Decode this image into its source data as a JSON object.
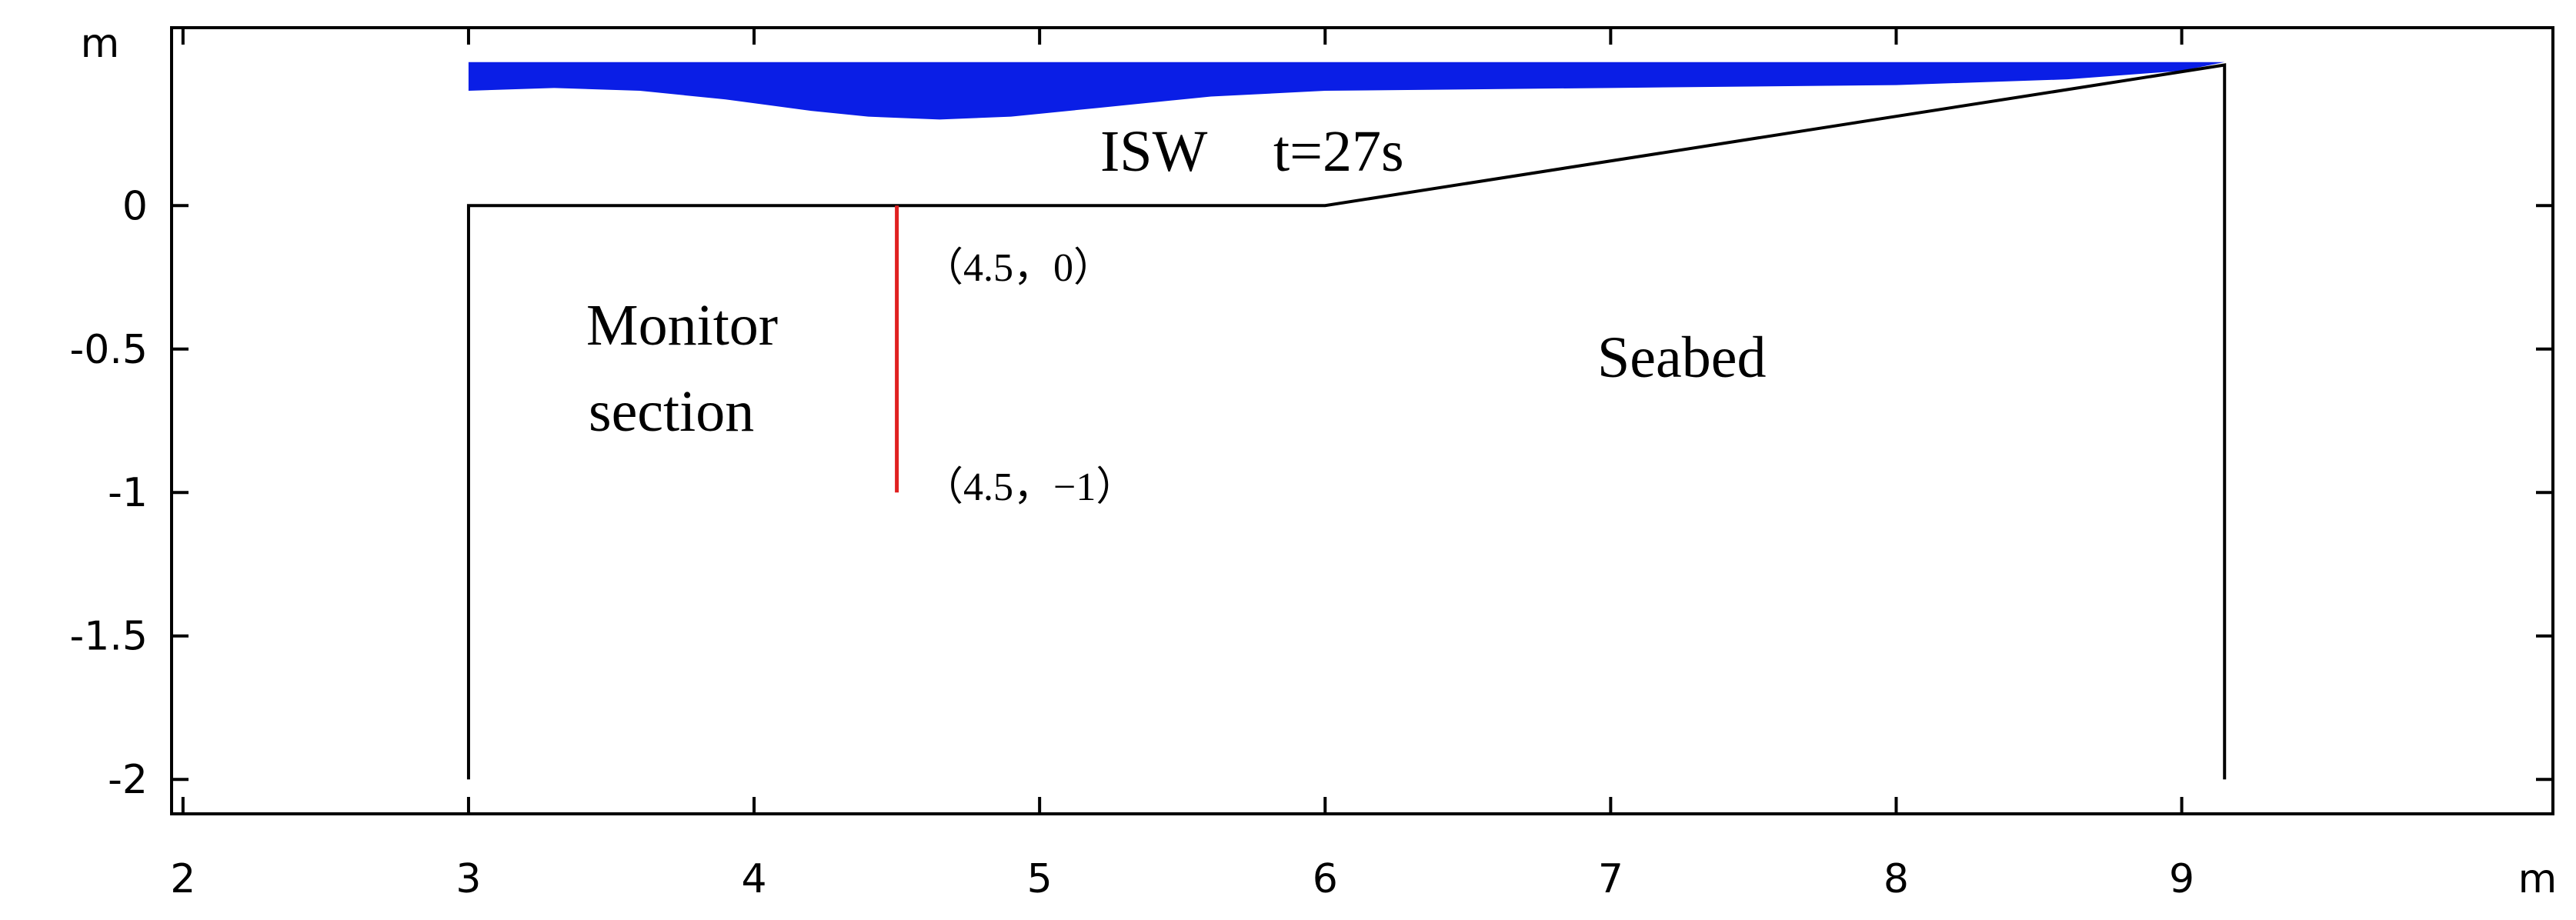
{
  "axes": {
    "x_unit": "m",
    "y_unit": "m",
    "x_ticks": [
      2,
      3,
      4,
      5,
      6,
      7,
      8,
      9
    ],
    "x_tick_labels": [
      "2",
      "3",
      "4",
      "5",
      "6",
      "7",
      "8",
      "9"
    ],
    "y_ticks": [
      0,
      -0.5,
      -1,
      -1.5,
      -2
    ],
    "y_tick_labels": [
      "0",
      "-0.5",
      "-1",
      "-1.5",
      "-2"
    ],
    "x_range": [
      1.96,
      10.3
    ],
    "y_range": [
      -2.12,
      0.62
    ]
  },
  "geometry": {
    "seabed_outline": [
      [
        3,
        -2
      ],
      [
        3,
        0
      ],
      [
        6,
        0
      ],
      [
        9.15,
        0.49
      ],
      [
        9.15,
        -2
      ]
    ],
    "monitor_line": [
      [
        4.5,
        0
      ],
      [
        4.5,
        -1
      ]
    ],
    "water_surface": [
      [
        3,
        0.5
      ],
      [
        9.15,
        0.5
      ]
    ],
    "water_interface": [
      [
        3,
        0.4
      ],
      [
        3.3,
        0.41
      ],
      [
        3.6,
        0.4
      ],
      [
        3.9,
        0.37
      ],
      [
        4.2,
        0.33
      ],
      [
        4.4,
        0.31
      ],
      [
        4.65,
        0.3
      ],
      [
        4.9,
        0.31
      ],
      [
        5.2,
        0.34
      ],
      [
        5.6,
        0.38
      ],
      [
        6.0,
        0.4
      ],
      [
        7.0,
        0.41
      ],
      [
        8.0,
        0.42
      ],
      [
        8.6,
        0.44
      ],
      [
        9.0,
        0.47
      ],
      [
        9.15,
        0.5
      ]
    ]
  },
  "colors": {
    "water": "#0a1ee6",
    "outline": "#000000",
    "monitor_line": "#e02020"
  },
  "labels": {
    "wave": "ISW",
    "time": "t=27s",
    "monitor_line1": "Monitor",
    "monitor_line2": "section",
    "seabed": "Seabed",
    "coord_top": "（4.5，0）",
    "coord_bottom": "（4.5，−1）"
  }
}
